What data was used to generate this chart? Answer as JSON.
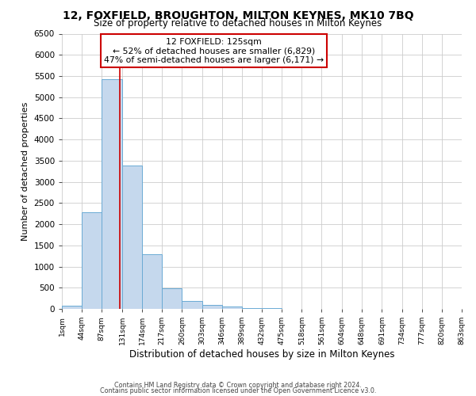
{
  "title": "12, FOXFIELD, BROUGHTON, MILTON KEYNES, MK10 7BQ",
  "subtitle": "Size of property relative to detached houses in Milton Keynes",
  "xlabel": "Distribution of detached houses by size in Milton Keynes",
  "ylabel": "Number of detached properties",
  "bin_edges": [
    1,
    44,
    87,
    131,
    174,
    217,
    260,
    303,
    346,
    389,
    432,
    475,
    518,
    561,
    604,
    648,
    691,
    734,
    777,
    820,
    863
  ],
  "bar_heights": [
    70,
    2280,
    5430,
    3390,
    1290,
    480,
    185,
    95,
    55,
    20,
    10,
    5,
    3,
    2,
    1,
    1,
    0,
    0,
    0,
    0
  ],
  "bar_color": "#c5d8ed",
  "bar_edge_color": "#6aaad4",
  "vline_x": 125,
  "vline_color": "#cc0000",
  "ylim": [
    0,
    6500
  ],
  "yticks": [
    0,
    500,
    1000,
    1500,
    2000,
    2500,
    3000,
    3500,
    4000,
    4500,
    5000,
    5500,
    6000,
    6500
  ],
  "annotation_title": "12 FOXFIELD: 125sqm",
  "annotation_line1": "← 52% of detached houses are smaller (6,829)",
  "annotation_line2": "47% of semi-detached houses are larger (6,171) →",
  "annotation_box_color": "#ffffff",
  "annotation_box_edge": "#cc0000",
  "footer1": "Contains HM Land Registry data © Crown copyright and database right 2024.",
  "footer2": "Contains public sector information licensed under the Open Government Licence v3.0.",
  "background_color": "#ffffff",
  "grid_color": "#cccccc"
}
